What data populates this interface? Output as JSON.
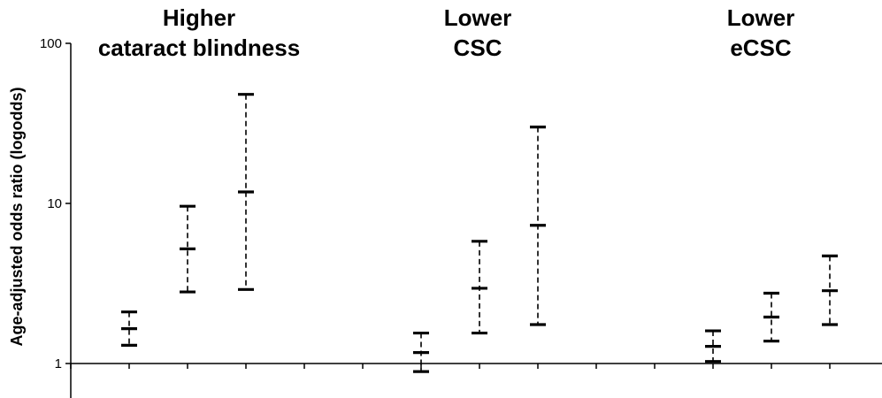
{
  "chart_data": {
    "type": "scatter",
    "title": "",
    "xlabel": "",
    "ylabel": "Age-adjusted odds ratio (logodds)",
    "yscale": "log",
    "ylim": [
      0.6,
      100
    ],
    "yticks": [
      {
        "value": 1,
        "label": "1"
      },
      {
        "value": 10,
        "label": "10"
      },
      {
        "value": 100,
        "label": "100"
      }
    ],
    "grid": false,
    "groups": [
      {
        "title_lines": [
          "Higher",
          "cataract blindness"
        ],
        "points": [
          {
            "estimate": 1.65,
            "lower": 1.3,
            "upper": 2.1
          },
          {
            "estimate": 5.2,
            "lower": 2.8,
            "upper": 9.6
          },
          {
            "estimate": 11.8,
            "lower": 2.9,
            "upper": 48
          }
        ]
      },
      {
        "title_lines": [
          "Lower",
          "CSC"
        ],
        "points": [
          {
            "estimate": 1.17,
            "lower": 0.89,
            "upper": 1.55
          },
          {
            "estimate": 2.95,
            "lower": 1.55,
            "upper": 5.8
          },
          {
            "estimate": 7.3,
            "lower": 1.75,
            "upper": 30
          }
        ]
      },
      {
        "title_lines": [
          "Lower",
          "eCSC"
        ],
        "points": [
          {
            "estimate": 1.28,
            "lower": 1.03,
            "upper": 1.6
          },
          {
            "estimate": 1.95,
            "lower": 1.38,
            "upper": 2.75
          },
          {
            "estimate": 2.85,
            "lower": 1.75,
            "upper": 4.7
          }
        ]
      }
    ],
    "colors": {
      "marks": "#000000",
      "axis": "#000000"
    }
  }
}
